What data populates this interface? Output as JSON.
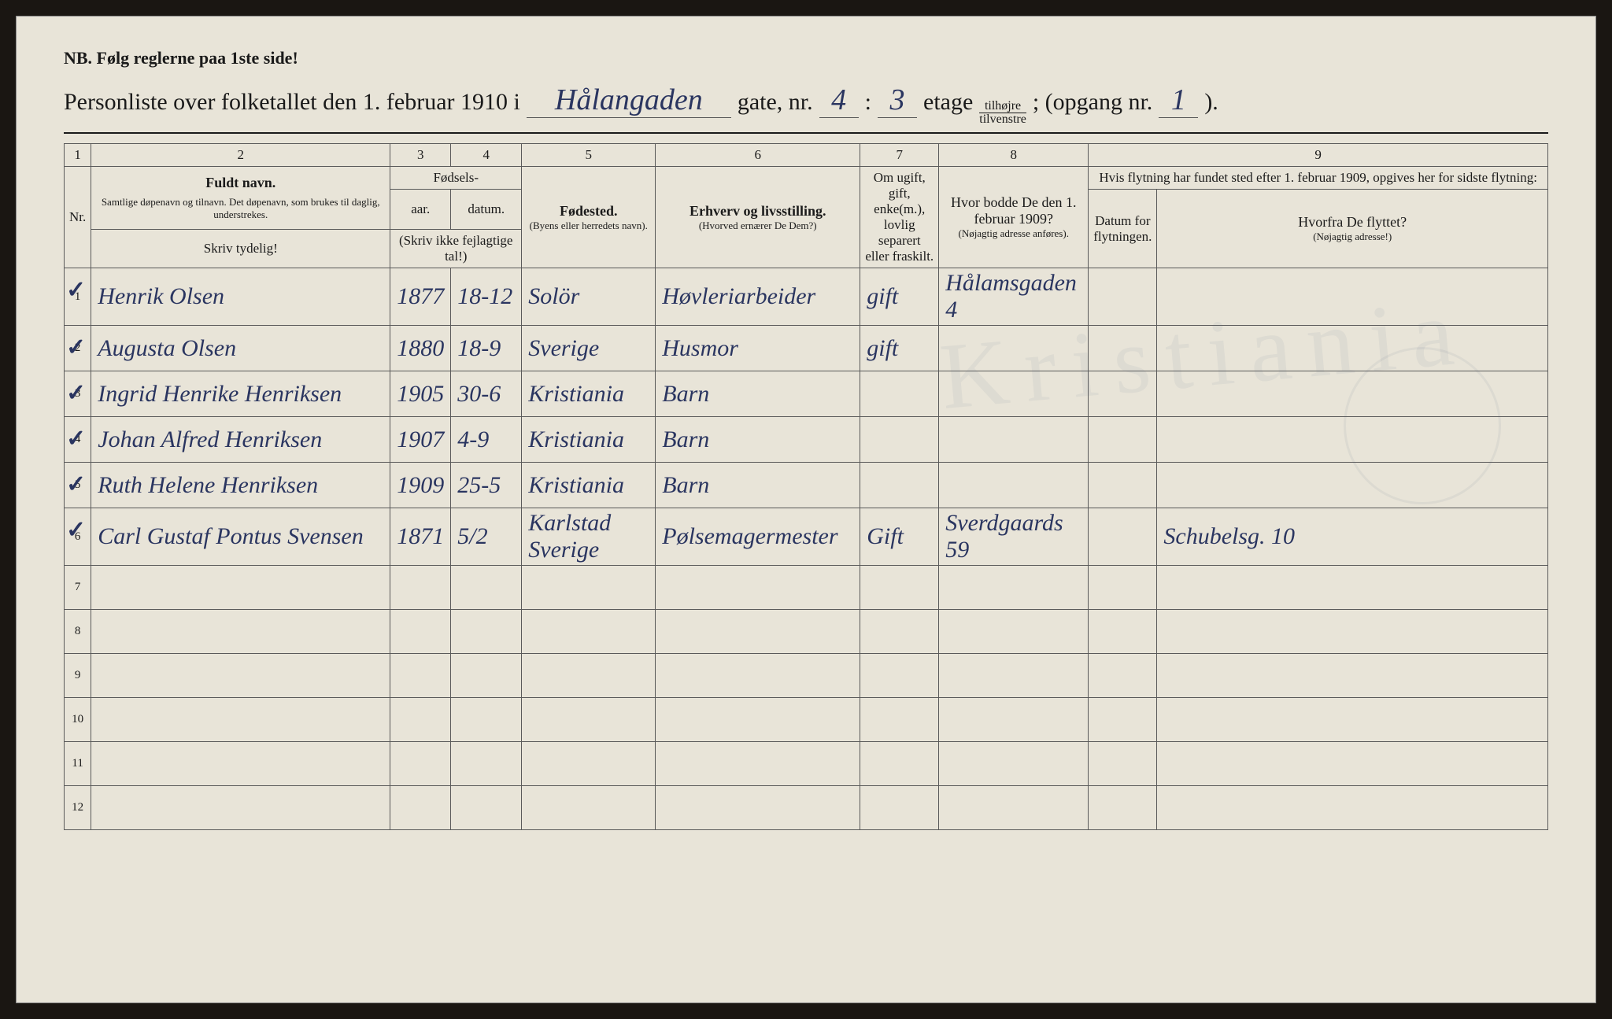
{
  "header": {
    "nb": "NB.  Følg reglerne paa 1ste side!",
    "title_prefix": "Personliste over folketallet den 1. februar 1910 i",
    "street": "Hålangaden",
    "gate_label": "gate, nr.",
    "gate_nr": "4",
    "colon": ":",
    "etage_nr": "3",
    "etage_label": "etage",
    "tilhojre": "tilhøjre",
    "tilvenstre": "tilvenstre",
    "semicolon": "; (opgang nr.",
    "opgang_nr": "1",
    "close": ")."
  },
  "columns": {
    "c1": "1",
    "c2": "2",
    "c3": "3",
    "c4": "4",
    "c5": "5",
    "c6": "6",
    "c7": "7",
    "c8": "8",
    "c9": "9",
    "nr": "Nr.",
    "fuldt_navn": "Fuldt navn.",
    "fuldt_navn_sub": "Samtlige døpenavn og tilnavn.  Det døpenavn, som brukes til daglig, understrekes.",
    "fodsels": "Fødsels-",
    "aar": "aar.",
    "datum": "datum.",
    "skriv_ikke": "(Skriv ikke fejlagtige tal!)",
    "fodested": "Fødested.",
    "fodested_sub": "(Byens eller herredets navn).",
    "erhverv": "Erhverv og livsstilling.",
    "erhverv_sub": "(Hvorved ernærer De Dem?)",
    "marital": "Om ugift, gift, enke(m.), lovlig separert eller fraskilt.",
    "addr1909": "Hvor bodde De den 1. februar 1909?",
    "addr1909_sub": "(Nøjagtig adresse anføres).",
    "flytning": "Hvis flytning har fundet sted efter 1. februar 1909, opgives her for sidste flytning:",
    "movedate": "Datum for flytningen.",
    "movefrom": "Hvorfra De flyttet?",
    "movefrom_sub": "(Nøjagtig adresse!)",
    "skriv_tydelig": "Skriv tydelig!"
  },
  "rows": [
    {
      "nr": "1",
      "check": "✓",
      "name": "Henrik Olsen",
      "year": "1877",
      "date": "18-12",
      "birthplace": "Solör",
      "occupation": "Høvleriarbeider",
      "marital": "gift",
      "addr1909": "Hålamsgaden 4",
      "movedate": "",
      "movefrom": ""
    },
    {
      "nr": "2",
      "check": "✓",
      "name": "Augusta Olsen",
      "year": "1880",
      "date": "18-9",
      "birthplace": "Sverige",
      "occupation": "Husmor",
      "marital": "gift",
      "addr1909": "",
      "movedate": "",
      "movefrom": ""
    },
    {
      "nr": "3",
      "check": "✓",
      "name": "Ingrid Henrike Henriksen",
      "year": "1905",
      "date": "30-6",
      "birthplace": "Kristiania",
      "occupation": "Barn",
      "marital": "",
      "addr1909": "",
      "movedate": "",
      "movefrom": ""
    },
    {
      "nr": "4",
      "check": "✓",
      "name": "Johan Alfred Henriksen",
      "year": "1907",
      "date": "4-9",
      "birthplace": "Kristiania",
      "occupation": "Barn",
      "marital": "",
      "addr1909": "",
      "movedate": "",
      "movefrom": ""
    },
    {
      "nr": "5",
      "check": "✓",
      "name": "Ruth Helene Henriksen",
      "year": "1909",
      "date": "25-5",
      "birthplace": "Kristiania",
      "occupation": "Barn",
      "marital": "",
      "addr1909": "",
      "movedate": "",
      "movefrom": ""
    },
    {
      "nr": "6",
      "check": "✓",
      "name": "Carl Gustaf Pontus Svensen",
      "year": "1871",
      "date": "5/2",
      "birthplace": "Karlstad Sverige",
      "occupation": "Pølsemagermester",
      "marital": "Gift",
      "addr1909": "Sverdgaards 59",
      "movedate": "",
      "movefrom": "Schubelsg. 10"
    }
  ],
  "empty_rows": [
    "7",
    "8",
    "9",
    "10",
    "11",
    "12"
  ]
}
